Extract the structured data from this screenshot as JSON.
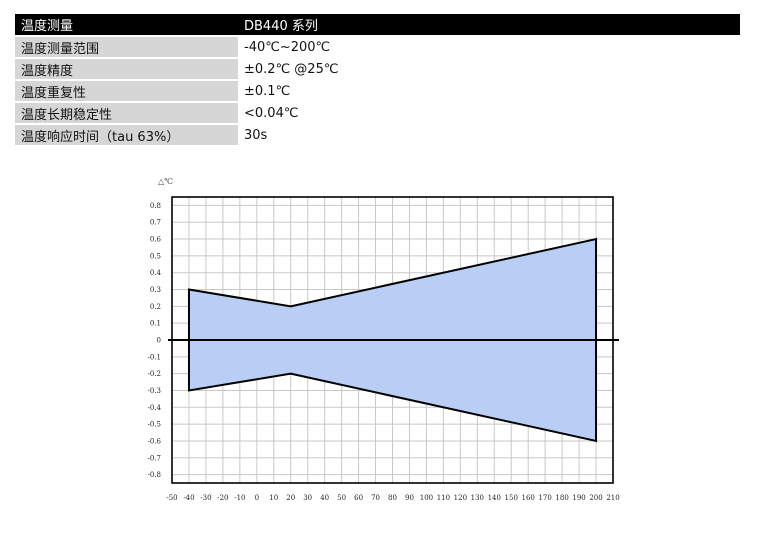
{
  "spec_table": {
    "header": {
      "key": "温度测量",
      "value": "DB440 系列"
    },
    "rows": [
      {
        "key": "温度测量范围",
        "value": "-40℃~200℃"
      },
      {
        "key": "温度精度",
        "value": "±0.2℃ @25℃"
      },
      {
        "key": "温度重复性",
        "value": "±0.1℃"
      },
      {
        "key": "温度长期稳定性",
        "value": "<0.04℃"
      },
      {
        "key": "温度响应时间（tau 63%）",
        "value": "30s"
      }
    ]
  },
  "chart_data": {
    "type": "area",
    "ylabel": "△℃",
    "xlabel": "",
    "title": "",
    "xlim": [
      -50,
      210
    ],
    "ylim": [
      -0.85,
      0.85
    ],
    "x_ticks": [
      -50,
      -40,
      -30,
      -20,
      -10,
      0,
      10,
      20,
      30,
      40,
      50,
      60,
      70,
      80,
      90,
      100,
      110,
      120,
      130,
      140,
      150,
      160,
      170,
      180,
      190,
      200,
      210
    ],
    "y_ticks": [
      0.8,
      0.7,
      0.6,
      0.5,
      0.4,
      0.3,
      0.2,
      0.1,
      0,
      -0.1,
      -0.2,
      -0.3,
      -0.4,
      -0.5,
      -0.6,
      -0.7,
      -0.8
    ],
    "y_tick_labels": [
      "0.8",
      "0.7",
      "0.6",
      "0.5",
      "0.4",
      "0.3",
      "0.2",
      "0.1",
      "0",
      "-0.1",
      "-0.2",
      "-0.3",
      "-0.4",
      "-0.5",
      "-0.6",
      "-0.7",
      "-0.8"
    ],
    "grid": true,
    "series": [
      {
        "x": [
          -40,
          20,
          200
        ],
        "upper": [
          0.3,
          0.2,
          0.6
        ],
        "lower": [
          -0.3,
          -0.2,
          -0.6
        ]
      }
    ],
    "colors": {
      "fill": "#b9cdf5",
      "line": "#000000",
      "grid": "#c8c8c8"
    }
  }
}
